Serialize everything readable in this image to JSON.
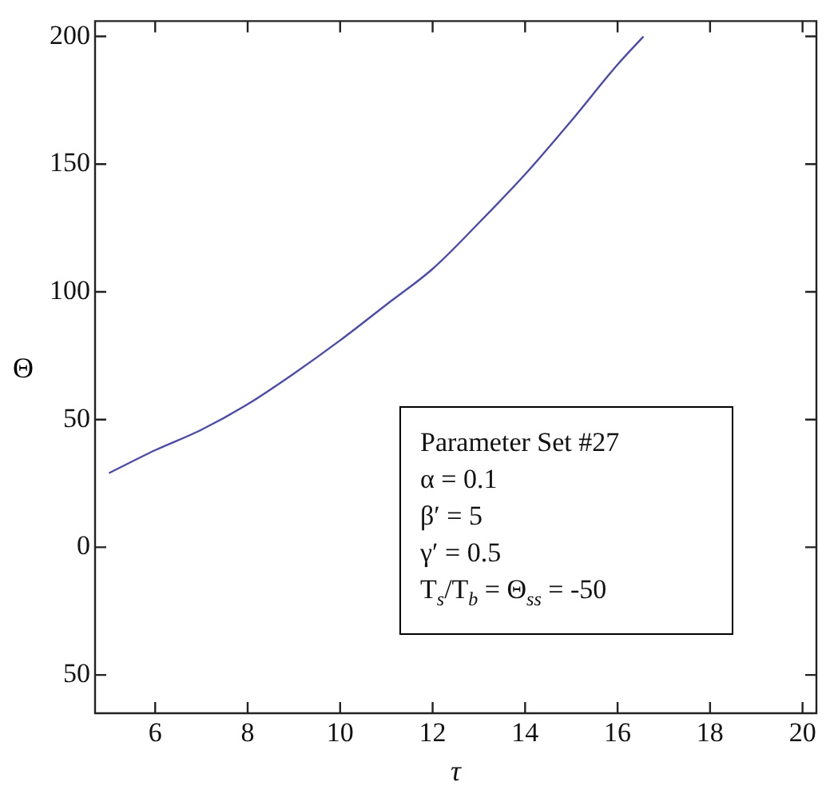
{
  "chart_data": {
    "type": "line",
    "xlabel": "τ",
    "ylabel": "Θ",
    "x": [
      5,
      6,
      7,
      8,
      9,
      10,
      11,
      12,
      13,
      14,
      15,
      16,
      16.56
    ],
    "series": [
      {
        "color": "#4b4baa",
        "values": [
          29,
          38,
          46,
          56,
          68,
          81,
          95,
          109,
          127,
          146,
          167,
          189,
          200
        ]
      }
    ],
    "xlim": [
      4.7,
      20.3
    ],
    "xticks": [
      6,
      8,
      10,
      12,
      14,
      16,
      18,
      20
    ],
    "ylim": [
      -65,
      206
    ],
    "yticks": [
      200,
      150,
      100,
      50,
      0,
      {
        "value": -50,
        "label": "50"
      }
    ],
    "grid": false,
    "legend": false,
    "marker": "none",
    "line_style": "solid",
    "annotations": [
      "Parameter Set #27",
      "α = 0.1",
      "β′ = 5",
      "γ′ = 0.5",
      "T$_{s}$/T$_{b}$ = Θ$_{ss}$ = -50"
    ]
  }
}
